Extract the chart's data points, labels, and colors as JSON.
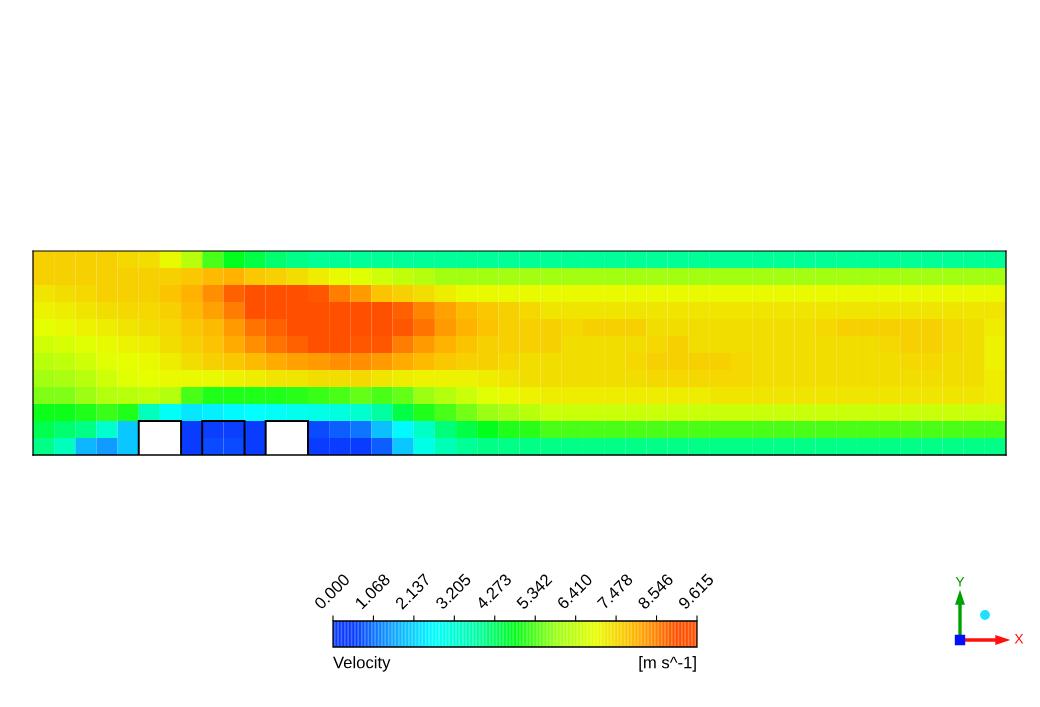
{
  "chart_data": {
    "type": "heatmap",
    "categories": [
      null,
      null,
      null,
      null,
      null,
      null,
      null,
      null,
      null,
      null,
      null,
      null,
      null,
      null,
      null,
      null,
      null,
      null,
      null,
      null,
      null,
      null,
      null,
      null,
      null,
      null,
      null,
      null,
      null,
      null,
      null,
      null,
      null,
      null,
      null,
      null,
      null,
      null,
      null,
      null,
      null,
      null,
      null,
      null,
      null,
      null
    ],
    "y_categories": [
      null,
      null,
      null,
      null,
      null,
      null,
      null,
      null,
      null,
      null,
      null,
      null
    ],
    "cells": [
      [
        7.6,
        7.6,
        7.6,
        7.6,
        7.5,
        7.4,
        7.0,
        6.3,
        5.3,
        4.8,
        4.5,
        4.2,
        4.0,
        3.9,
        3.9,
        3.9,
        3.9,
        3.9,
        3.9,
        3.9,
        3.9,
        3.9,
        3.9,
        3.9,
        3.9,
        3.9,
        3.9,
        3.9,
        3.9,
        3.9,
        3.9,
        3.9,
        3.9,
        3.9,
        3.9,
        3.9,
        3.9,
        3.9,
        3.9,
        3.9,
        3.9,
        3.9,
        3.9,
        3.9,
        3.9,
        3.9
      ],
      [
        7.6,
        7.6,
        7.6,
        7.6,
        7.6,
        7.6,
        7.6,
        7.7,
        7.9,
        8.0,
        7.7,
        7.6,
        7.4,
        7.2,
        7.0,
        6.8,
        6.6,
        6.4,
        6.2,
        6.0,
        6.0,
        6.0,
        6.0,
        6.0,
        6.0,
        6.0,
        6.0,
        6.0,
        6.0,
        6.0,
        6.0,
        6.0,
        6.0,
        6.0,
        6.0,
        6.0,
        6.0,
        6.0,
        6.0,
        6.0,
        6.0,
        6.0,
        6.0,
        6.0,
        6.0,
        6.0
      ],
      [
        7.3,
        7.4,
        7.5,
        7.6,
        7.6,
        7.6,
        7.8,
        8.0,
        8.4,
        8.9,
        9.5,
        9.5,
        9.4,
        9.0,
        8.6,
        8.3,
        7.8,
        7.6,
        7.4,
        7.2,
        7.0,
        7.0,
        7.0,
        7.0,
        7.0,
        7.0,
        7.0,
        7.0,
        7.0,
        7.0,
        7.0,
        7.0,
        7.0,
        7.0,
        7.0,
        7.0,
        7.0,
        7.0,
        7.0,
        7.0,
        7.0,
        7.0,
        7.0,
        7.0,
        7.0,
        7.0
      ],
      [
        7.1,
        7.2,
        7.3,
        7.4,
        7.5,
        7.5,
        7.6,
        7.9,
        8.2,
        8.6,
        9.2,
        9.5,
        9.4,
        9.2,
        9.2,
        9.2,
        9.1,
        8.9,
        8.5,
        8.2,
        7.9,
        7.7,
        7.6,
        7.5,
        7.3,
        7.3,
        7.3,
        7.3,
        7.3,
        7.3,
        7.3,
        7.3,
        7.3,
        7.3,
        7.3,
        7.3,
        7.3,
        7.3,
        7.3,
        7.3,
        7.3,
        7.3,
        7.3,
        7.3,
        7.3,
        7.3
      ],
      [
        6.9,
        7.0,
        7.1,
        7.2,
        7.3,
        7.4,
        7.5,
        7.7,
        7.9,
        8.3,
        8.7,
        8.9,
        9.2,
        9.4,
        9.4,
        9.4,
        9.3,
        9.0,
        8.7,
        8.3,
        8.0,
        7.8,
        7.6,
        7.6,
        7.6,
        7.5,
        7.6,
        7.6,
        7.6,
        7.4,
        7.4,
        7.4,
        7.4,
        7.4,
        7.4,
        7.4,
        7.4,
        7.5,
        7.6,
        7.6,
        7.6,
        7.6,
        7.6,
        7.5,
        7.4,
        7.2
      ],
      [
        6.6,
        6.7,
        6.8,
        7.0,
        7.1,
        7.2,
        7.4,
        7.6,
        7.8,
        8.1,
        8.4,
        8.7,
        8.9,
        9.2,
        9.2,
        9.0,
        9.0,
        8.6,
        8.3,
        8.0,
        7.8,
        7.6,
        7.6,
        7.6,
        7.6,
        7.4,
        7.4,
        7.4,
        7.4,
        7.5,
        7.6,
        7.4,
        7.4,
        7.4,
        7.4,
        7.4,
        7.4,
        7.4,
        7.4,
        7.4,
        7.5,
        7.6,
        7.6,
        7.5,
        7.4,
        7.1
      ],
      [
        6.3,
        6.4,
        6.6,
        6.8,
        6.9,
        7.0,
        7.2,
        7.4,
        7.6,
        7.7,
        7.9,
        8.1,
        8.2,
        8.3,
        8.4,
        8.4,
        8.3,
        8.1,
        7.9,
        7.7,
        7.6,
        7.6,
        7.5,
        7.4,
        7.4,
        7.4,
        7.4,
        7.4,
        7.5,
        7.6,
        7.6,
        7.6,
        7.6,
        7.5,
        7.4,
        7.4,
        7.4,
        7.4,
        7.4,
        7.4,
        7.4,
        7.5,
        7.5,
        7.4,
        7.4,
        7.1
      ],
      [
        6.0,
        6.1,
        6.3,
        6.6,
        6.8,
        6.9,
        7.0,
        7.0,
        7.0,
        7.1,
        7.2,
        7.3,
        7.3,
        7.4,
        7.4,
        7.5,
        7.3,
        7.2,
        7.1,
        7.1,
        7.1,
        7.2,
        7.3,
        7.4,
        7.4,
        7.4,
        7.4,
        7.4,
        7.4,
        7.5,
        7.5,
        7.5,
        7.5,
        7.5,
        7.4,
        7.4,
        7.4,
        7.4,
        7.4,
        7.4,
        7.4,
        7.4,
        7.4,
        7.4,
        7.4,
        7.2
      ],
      [
        5.7,
        5.7,
        5.9,
        6.2,
        6.3,
        6.4,
        6.2,
        5.3,
        5.0,
        5.0,
        5.0,
        5.0,
        5.1,
        5.2,
        5.3,
        5.5,
        5.3,
        5.5,
        5.9,
        6.2,
        6.5,
        6.8,
        7.0,
        7.1,
        7.2,
        7.2,
        7.2,
        7.2,
        7.2,
        7.2,
        7.2,
        7.2,
        7.3,
        7.3,
        7.3,
        7.3,
        7.3,
        7.3,
        7.3,
        7.3,
        7.3,
        7.3,
        7.3,
        7.3,
        7.3,
        7.2
      ],
      [
        4.9,
        4.9,
        5.0,
        5.2,
        5.0,
        3.5,
        2.8,
        2.4,
        2.5,
        2.6,
        2.7,
        2.8,
        2.9,
        3.0,
        3.1,
        3.3,
        3.8,
        4.5,
        5.0,
        5.3,
        5.6,
        5.9,
        6.1,
        6.3,
        6.5,
        6.5,
        6.5,
        6.5,
        6.5,
        6.5,
        6.5,
        6.5,
        6.5,
        6.5,
        6.5,
        6.5,
        6.5,
        6.5,
        6.5,
        6.5,
        6.5,
        6.5,
        6.5,
        6.5,
        6.5,
        6.5
      ],
      [
        4.4,
        4.2,
        4.0,
        3.3,
        2.0,
        null,
        null,
        0.5,
        0.6,
        0.6,
        0.5,
        null,
        null,
        0.7,
        0.9,
        1.1,
        1.9,
        2.6,
        3.4,
        4.1,
        4.5,
        4.8,
        5.0,
        5.1,
        5.3,
        5.3,
        5.3,
        5.3,
        5.3,
        5.3,
        5.3,
        5.3,
        5.3,
        5.3,
        5.3,
        5.3,
        5.3,
        5.3,
        5.3,
        5.3,
        5.3,
        5.3,
        5.3,
        5.3,
        5.3,
        5.3
      ],
      [
        4.0,
        3.5,
        1.8,
        1.5,
        2.0,
        null,
        null,
        0.5,
        0.7,
        0.7,
        0.5,
        null,
        null,
        0.4,
        0.4,
        0.4,
        0.9,
        2.0,
        3.0,
        3.6,
        3.9,
        4.0,
        4.0,
        4.0,
        4.0,
        4.0,
        4.0,
        4.0,
        4.0,
        4.0,
        4.0,
        4.0,
        4.0,
        4.0,
        4.0,
        4.0,
        4.0,
        4.0,
        4.0,
        4.0,
        4.0,
        4.0,
        4.0,
        4.0,
        4.0,
        4.0
      ]
    ],
    "colors": [
      "#0a3cff",
      "#10a8ff",
      "#00ffff",
      "#00ffaa",
      "#00ff1a",
      "#99ff14",
      "#e8ff00",
      "#ffb400",
      "#ff5000"
    ],
    "clim": [
      0,
      9.615
    ],
    "cticks": [
      {
        "value": 0,
        "label": "0.000"
      },
      1.068,
      2.137,
      3.205,
      4.273,
      5.342,
      {
        "value": 6.41,
        "label": "6.410"
      },
      7.478,
      8.546,
      9.615
    ],
    "clabel": "Velocity",
    "annotations": [
      "[m s^-1]",
      "Y",
      "X"
    ],
    "tick_labels": false
  }
}
